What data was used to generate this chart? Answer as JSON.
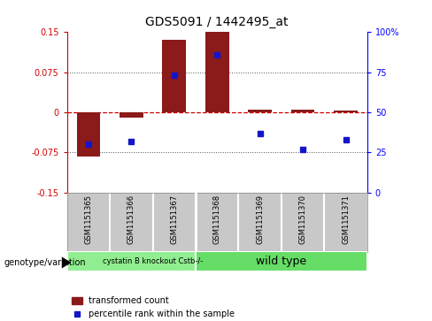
{
  "title": "GDS5091 / 1442495_at",
  "samples": [
    "GSM1151365",
    "GSM1151366",
    "GSM1151367",
    "GSM1151368",
    "GSM1151369",
    "GSM1151370",
    "GSM1151371"
  ],
  "bar_values": [
    -0.083,
    -0.01,
    0.135,
    0.15,
    0.005,
    0.005,
    0.003
  ],
  "percentile_values": [
    30,
    32,
    73,
    86,
    37,
    27,
    33
  ],
  "ylim_left": [
    -0.15,
    0.15
  ],
  "ylim_right": [
    0,
    100
  ],
  "yticks_left": [
    -0.15,
    -0.075,
    0,
    0.075,
    0.15
  ],
  "yticks_right": [
    0,
    25,
    50,
    75,
    100
  ],
  "ytick_labels_left": [
    "-0.15",
    "-0.075",
    "0",
    "0.075",
    "0.15"
  ],
  "ytick_labels_right": [
    "0",
    "25",
    "50",
    "75",
    "100%"
  ],
  "bar_color": "#8B1A1A",
  "dot_color": "#1515C8",
  "zero_line_color": "#CC0000",
  "grid_line_color": "#555555",
  "bg_color": "#C8C8C8",
  "plot_bg_color": "#FFFFFF",
  "group1_color": "#90EE90",
  "group2_color": "#66DD66",
  "legend_items": [
    "transformed count",
    "percentile rank within the sample"
  ],
  "genotype_label": "genotype/variation",
  "group1_label": "cystatin B knockout Cstb-/-",
  "group2_label": "wild type",
  "group_boundary": 3
}
